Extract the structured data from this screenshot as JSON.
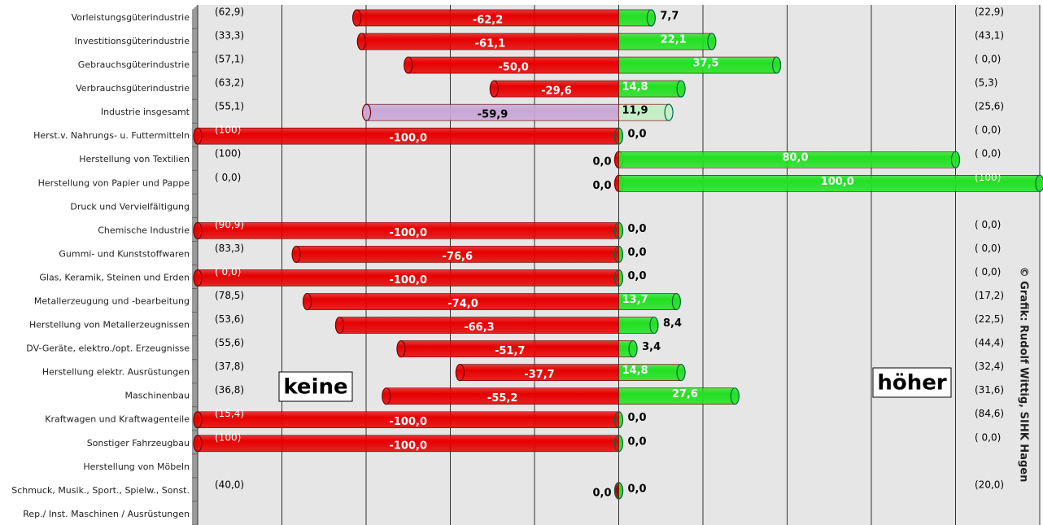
{
  "chart_data": {
    "type": "diverging-bar",
    "categories": [
      "Vorleistungsgüterindustrie",
      "Investitionsgüterindustrie",
      "Gebrauchsgüterindustrie",
      "Verbrauchsgüterindustrie",
      "Industrie insgesamt",
      "Herst.v. Nahrungs- u. Futtermitteln",
      "Herstellung von Textilien",
      "Herstellung von Papier und Pappe",
      "Druck und Vervielfältigung",
      "Chemische Industrie",
      "Gummi- und Kunststoffwaren",
      "Glas, Keramik, Steinen und Erden",
      "Metallerzeugung und -bearbeitung",
      "Herstellung von Metallerzeugnissen",
      "DV-Geräte, elektro./opt. Erzeugnisse",
      "Herstellung elektr. Ausrüstungen",
      "Maschinenbau",
      "Kraftwagen und Kraftwagenteile",
      "Sonstiger Fahrzeugbau",
      "Herstellung von Möbeln",
      "Schmuck, Musik., Sport., Spielw., Sonst.",
      "Rep./ Inst. Maschinen / Ausrüstungen"
    ],
    "series": [
      {
        "name": "keine",
        "values": [
          -62.2,
          -61.1,
          -50.0,
          -29.6,
          -59.9,
          -100.0,
          0.0,
          0.0,
          null,
          -100.0,
          -76.6,
          -100.0,
          -74.0,
          -66.3,
          -51.7,
          -37.7,
          -55.2,
          -100.0,
          -100.0,
          null,
          0.0,
          null
        ],
        "value_labels": [
          "-62,2",
          "-61,1",
          "-50,0",
          "-29,6",
          "-59,9",
          "-100,0",
          "0,0",
          "0,0",
          null,
          "-100,0",
          "-76,6",
          "-100,0",
          "-74,0",
          "-66,3",
          "-51,7",
          "-37,7",
          "-55,2",
          "-100,0",
          "-100,0",
          null,
          "0,0",
          null
        ],
        "colors": [
          "#e60000",
          "#e60000",
          "#e60000",
          "#e60000",
          "#c8a6d6",
          "#e60000",
          "#e60000",
          "#e60000",
          "#e60000",
          "#e60000",
          "#e60000",
          "#e60000",
          "#e60000",
          "#e60000",
          "#e60000",
          "#e60000",
          "#e60000",
          "#e60000",
          "#e60000",
          "#e60000",
          "#a00000",
          "#e60000"
        ],
        "side_labels": [
          "(62,9)",
          "(33,3)",
          "(57,1)",
          "(63,2)",
          "(55,1)",
          "(100)",
          "(100)",
          "( 0,0)",
          null,
          "(90,9)",
          "(83,3)",
          "( 0,0)",
          "(78,5)",
          "(53,6)",
          "(55,6)",
          "(37,8)",
          "(36,8)",
          "(15,4)",
          "(100)",
          null,
          "(40,0)",
          null
        ]
      },
      {
        "name": "höher",
        "values": [
          7.7,
          22.1,
          37.5,
          14.8,
          11.9,
          0.0,
          80.0,
          100.0,
          null,
          0.0,
          0.0,
          0.0,
          13.7,
          8.4,
          3.4,
          14.8,
          27.6,
          0.0,
          0.0,
          null,
          0.0,
          null
        ],
        "value_labels": [
          "7,7",
          "22,1",
          "37,5",
          "14,8",
          "11,9",
          "0,0",
          "80,0",
          "100,0",
          null,
          "0,0",
          "0,0",
          "0,0",
          "13,7",
          "8,4",
          "3,4",
          "14,8",
          "27,6",
          "0,0",
          "0,0",
          null,
          "0,0",
          null
        ],
        "colors": [
          "#22e022",
          "#22e022",
          "#22e022",
          "#22e022",
          "#c4eec4",
          "#22e022",
          "#22e022",
          "#22e022",
          "#22e022",
          "#22e022",
          "#22e022",
          "#22e022",
          "#22e022",
          "#22e022",
          "#22e022",
          "#22e022",
          "#22e022",
          "#22e022",
          "#22e022",
          "#22e022",
          "#22e022",
          "#22e022"
        ],
        "side_labels": [
          "(22,9)",
          "(43,1)",
          "( 0,0)",
          "(5,3)",
          "(25,6)",
          "( 0,0)",
          "( 0,0)",
          "(100)",
          null,
          "( 0,0)",
          "( 0,0)",
          "( 0,0)",
          "(17,2)",
          "(22,5)",
          "(44,4)",
          "(32,4)",
          "(31,6)",
          "(84,6)",
          "( 0,0)",
          null,
          "(20,0)",
          null
        ]
      }
    ],
    "xlim": [
      -100,
      100
    ],
    "xticks": [
      -100,
      -80,
      -60,
      -40,
      -20,
      0,
      20,
      40,
      60,
      80,
      100
    ],
    "grid": true,
    "credit": "© Grafik: Rudolf Wittig, SIHK Hagen"
  }
}
